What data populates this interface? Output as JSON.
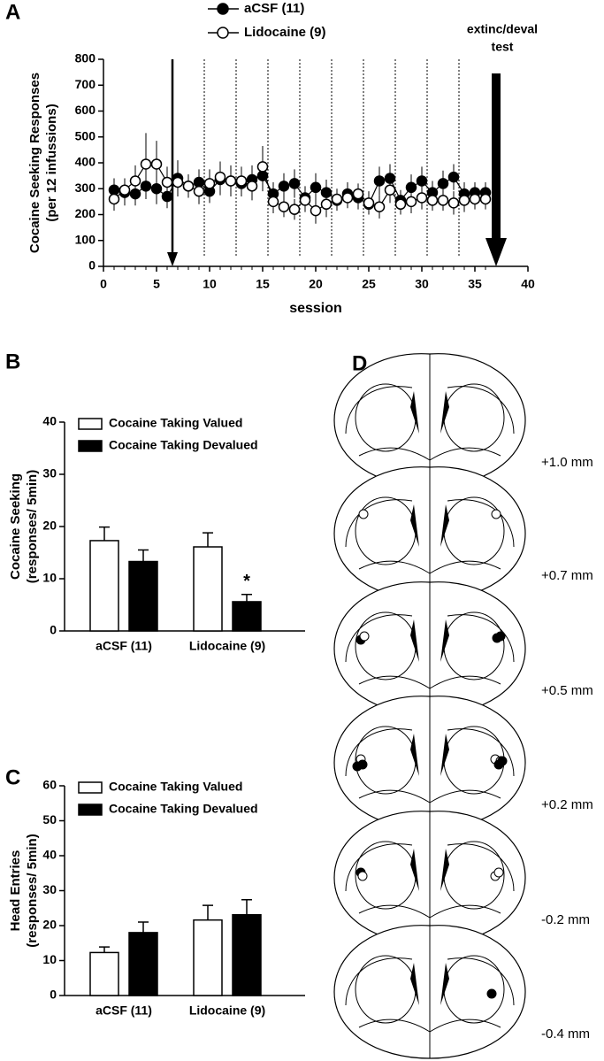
{
  "chart_data": [
    {
      "type": "line",
      "panel": "A",
      "ylabel": [
        "Cocaine Seeking Responses",
        "(per 12 infussions)"
      ],
      "xlabel": "session",
      "x": [
        1,
        2,
        3,
        4,
        5,
        6,
        7,
        8,
        9,
        10,
        11,
        12,
        13,
        14,
        15,
        16,
        17,
        18,
        19,
        20,
        21,
        22,
        23,
        24,
        25,
        26,
        27,
        28,
        29,
        30,
        31,
        32,
        33,
        34,
        35,
        36
      ],
      "series": [
        {
          "name": "aCSF (11)",
          "color": "#000000",
          "values": [
            295,
            285,
            280,
            310,
            300,
            270,
            340,
            310,
            325,
            290,
            335,
            330,
            320,
            335,
            350,
            280,
            310,
            320,
            265,
            305,
            285,
            255,
            280,
            265,
            240,
            330,
            340,
            255,
            305,
            330,
            285,
            320,
            345,
            280,
            285,
            285
          ],
          "errors": [
            45,
            50,
            45,
            50,
            60,
            45,
            70,
            45,
            50,
            45,
            60,
            60,
            50,
            55,
            60,
            45,
            50,
            55,
            45,
            55,
            50,
            40,
            45,
            45,
            40,
            55,
            55,
            40,
            50,
            55,
            45,
            50,
            50,
            45,
            40,
            40
          ]
        },
        {
          "name": "Lidocaine (9)",
          "color": "#ffffff",
          "values": [
            260,
            295,
            330,
            395,
            395,
            325,
            325,
            310,
            290,
            320,
            345,
            330,
            330,
            310,
            385,
            250,
            230,
            220,
            255,
            215,
            240,
            260,
            265,
            280,
            245,
            230,
            295,
            240,
            250,
            265,
            255,
            255,
            245,
            255,
            260,
            260
          ],
          "errors": [
            45,
            45,
            60,
            120,
            90,
            60,
            55,
            45,
            50,
            55,
            60,
            50,
            55,
            55,
            80,
            45,
            40,
            40,
            45,
            50,
            50,
            40,
            40,
            40,
            45,
            45,
            50,
            40,
            45,
            45,
            40,
            40,
            45,
            45,
            40,
            40
          ]
        }
      ],
      "xlim": [
        0,
        40
      ],
      "xticks": [
        0,
        5,
        10,
        15,
        20,
        25,
        30,
        35,
        40
      ],
      "ylim": [
        0,
        800
      ],
      "yticks": [
        0,
        100,
        200,
        300,
        400,
        500,
        600,
        700,
        800
      ],
      "arrow_x": 6.5,
      "dividers": [
        9.5,
        12.5,
        15.5,
        18.5,
        21.5,
        24.5,
        27.5,
        30.5,
        33.5
      ],
      "test_x": 37,
      "test_label": [
        "extinc/deval",
        "test"
      ]
    },
    {
      "type": "bar",
      "panel": "B",
      "ylabel": [
        "Cocaine Seeking",
        "(responses/ 5min)"
      ],
      "categories": [
        "aCSF (11)",
        "Lidocaine (9)"
      ],
      "series": [
        {
          "name": "Cocaine Taking Valued",
          "color": "#ffffff",
          "values": [
            17.3,
            16.1
          ],
          "errors": [
            2.6,
            2.7
          ]
        },
        {
          "name": "Cocaine Taking Devalued",
          "color": "#000000",
          "values": [
            13.3,
            5.6
          ],
          "errors": [
            2.2,
            1.4
          ]
        }
      ],
      "ylim": [
        0,
        40
      ],
      "yticks": [
        0,
        10,
        20,
        30,
        40
      ],
      "annotation": "*"
    },
    {
      "type": "bar",
      "panel": "C",
      "ylabel": [
        "Head Entries",
        "(responses/ 5min)"
      ],
      "categories": [
        "aCSF (11)",
        "Lidocaine (9)"
      ],
      "series": [
        {
          "name": "Cocaine Taking Valued",
          "color": "#ffffff",
          "values": [
            12.3,
            21.6
          ],
          "errors": [
            1.6,
            4.2
          ]
        },
        {
          "name": "Cocaine Taking Devalued",
          "color": "#000000",
          "values": [
            18.0,
            23.1
          ],
          "errors": [
            3.0,
            4.3
          ]
        }
      ],
      "ylim": [
        0,
        60
      ],
      "yticks": [
        0,
        10,
        20,
        30,
        40,
        50,
        60
      ]
    }
  ],
  "atlas": {
    "panel": "D",
    "sections": [
      "+1.0 mm",
      "+0.7 mm",
      "+0.5 mm",
      "+0.2 mm",
      "-0.2 mm",
      "-0.4 mm"
    ]
  }
}
